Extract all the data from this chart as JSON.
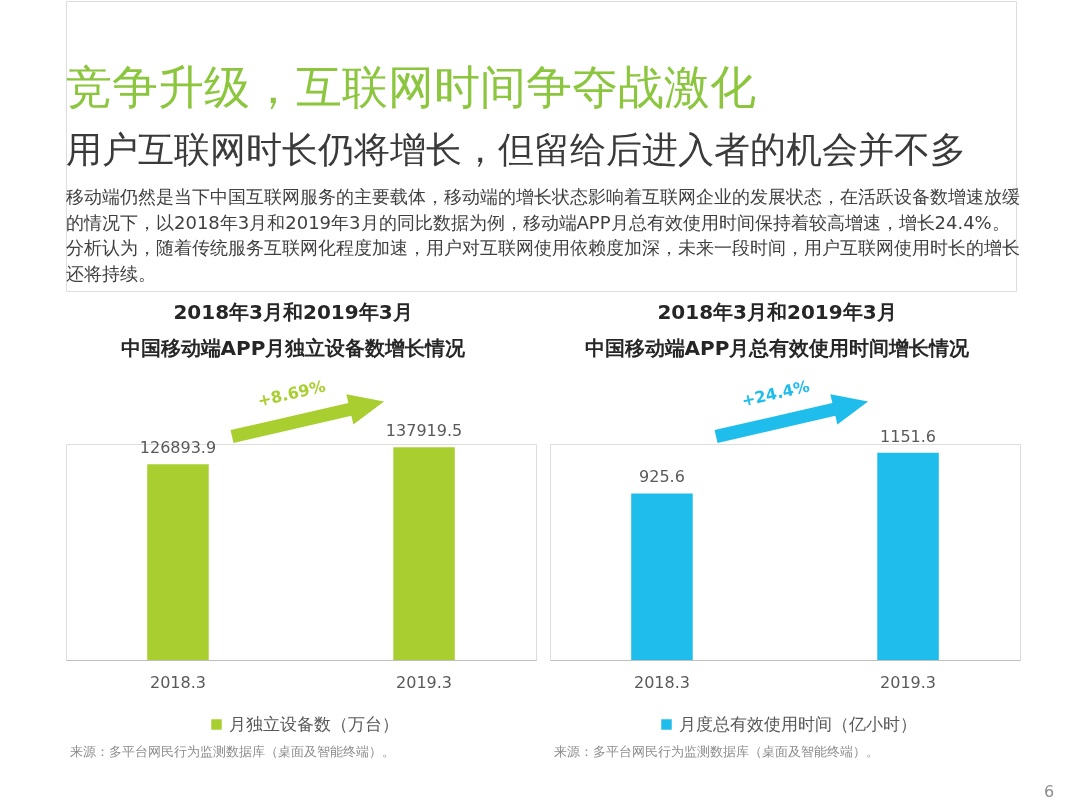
{
  "chart_data": [
    {
      "type": "other",
      "title": "竞争升级，互联网时间争夺战激化",
      "subtitle": "用户互联网时长仍将增长，但留给后进入者的机会并不多",
      "annotations": [
        "移动端仍然是当下中国互联网服务的主要载体，移动端的增长状态影响着互联网企业的发展状态，在活跃设备数增速放缓的情况下，以2018年3月和2019年3月的同比数据为例，移动端APP月总有效使用时间保持着较高增速，增长24.4%。分析认为，随着传统服务互联网化程度加速，用户对互联网使用依赖度加深，未来一段时间，用户互联网使用时长的增长还将持续。"
      ]
    },
    {
      "type": "bar",
      "title": "2018年3月和2019年3月",
      "subtitle": "中国移动端APP月独立设备数增长情况",
      "categories": [
        "2018.3",
        "2019.3"
      ],
      "series": [
        {
          "name": "月独立设备数（万台）",
          "color": "#a8cf2f",
          "values": [
            126893.9,
            137919.5
          ]
        }
      ],
      "data_labels": true,
      "legend": "bottom",
      "annotations": [
        "+8.69%",
        "来源：多平台网民行为监测数据库（桌面及智能终端）。"
      ]
    },
    {
      "type": "bar",
      "title": "2018年3月和2019年3月",
      "subtitle": "中国移动端APP月总有效使用时间增长情况",
      "categories": [
        "2018.3",
        "2019.3"
      ],
      "series": [
        {
          "name": "月度总有效使用时间（亿小时）",
          "color": "#1fbdec",
          "values": [
            925.6,
            1151.6
          ]
        }
      ],
      "data_labels": true,
      "legend": "bottom",
      "annotations": [
        "+24.4%",
        "来源：多平台网民行为监测数据库（桌面及智能终端）。",
        "6"
      ]
    }
  ]
}
